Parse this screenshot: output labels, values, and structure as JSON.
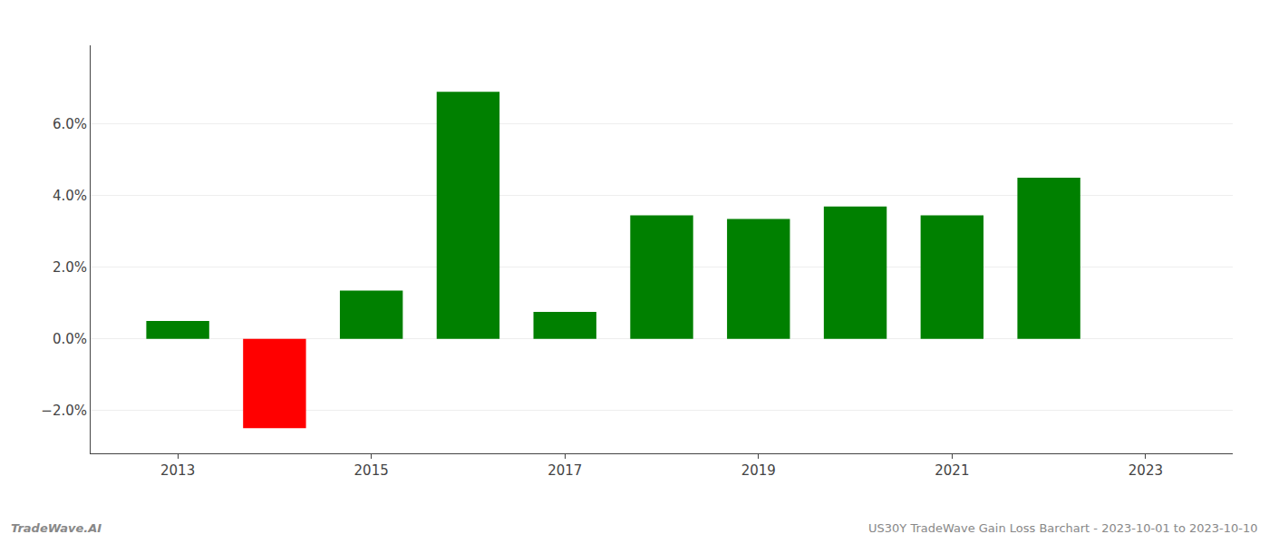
{
  "chart_data": {
    "type": "bar",
    "x": [
      2013,
      2014,
      2015,
      2016,
      2017,
      2018,
      2019,
      2020,
      2021,
      2022
    ],
    "values": [
      0.005,
      -0.025,
      0.0135,
      0.069,
      0.0075,
      0.0345,
      0.0335,
      0.037,
      0.0345,
      0.045
    ],
    "colors": [
      "#008000",
      "#ff0000",
      "#008000",
      "#008000",
      "#008000",
      "#008000",
      "#008000",
      "#008000",
      "#008000",
      "#008000"
    ],
    "xlim": [
      2012.1,
      2023.9
    ],
    "xticks": [
      2013,
      2015,
      2017,
      2019,
      2021,
      2023
    ],
    "ylim": [
      -0.032,
      0.082
    ],
    "yticks": [
      {
        "value": -0.02,
        "label": "−2.0%"
      },
      {
        "value": 0.0,
        "label": "0.0%"
      },
      {
        "value": 0.02,
        "label": "2.0%"
      },
      {
        "value": 0.04,
        "label": "4.0%"
      },
      {
        "value": 0.06,
        "label": "6.0%"
      }
    ],
    "grid": true,
    "annotations": [
      "TradeWave.AI",
      "US30Y TradeWave Gain Loss Barchart - 2023-10-01 to 2023-10-10"
    ]
  }
}
